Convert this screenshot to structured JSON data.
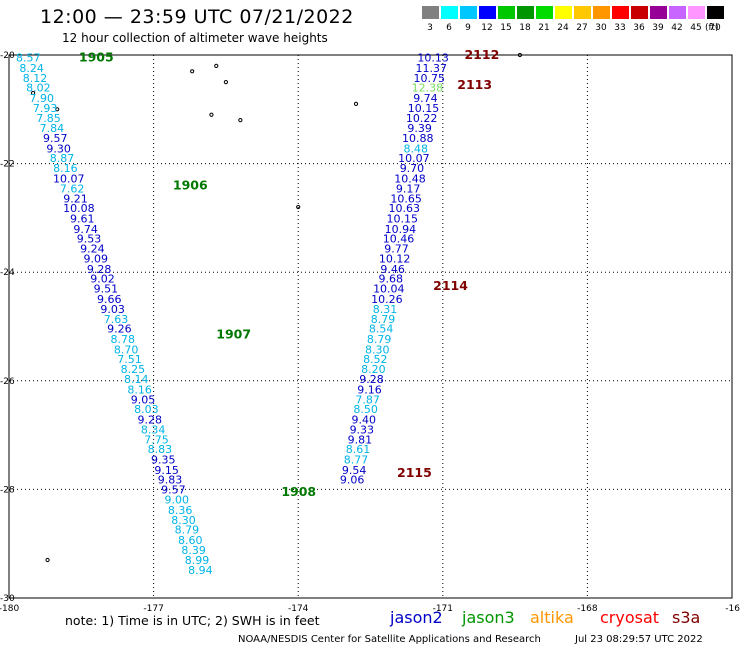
{
  "header": {
    "title": "12:00 — 23:59 UTC 07/21/2022",
    "subtitle": "12 hour collection of altimeter wave heights"
  },
  "legend": {
    "unit": "(ft)",
    "labels": [
      "3",
      "6",
      "9",
      "12",
      "15",
      "18",
      "21",
      "24",
      "27",
      "30",
      "33",
      "36",
      "39",
      "42",
      "45",
      "70"
    ],
    "colors": [
      "#808080",
      "#00ffff",
      "#00c8ff",
      "#0000ff",
      "#00c800",
      "#009600",
      "#00dc00",
      "#ffff00",
      "#ffc800",
      "#ff9600",
      "#ff0000",
      "#c80000",
      "#960096",
      "#c864ff",
      "#ff96ff",
      "#000000"
    ]
  },
  "map": {
    "lat_labels": [
      "-20",
      "-22",
      "-24",
      "-26",
      "-28",
      "-30"
    ],
    "lon_labels": [
      "-180",
      "-177",
      "-174",
      "-171",
      "-168",
      "-16"
    ],
    "tracks": [
      {
        "color_key": "jason3",
        "time_labels": [
          {
            "text": "1905",
            "lat": -20.05,
            "lon": -178.55
          },
          {
            "text": "1906",
            "lat": -22.4,
            "lon": -176.6
          },
          {
            "text": "1907",
            "lat": -25.15,
            "lon": -175.7
          },
          {
            "text": "1908",
            "lat": -28.05,
            "lon": -174.35
          }
        ],
        "points": [
          {
            "lat": -20.05,
            "lon": -179.6,
            "v": "8.57",
            "c": "#00b4e6"
          },
          {
            "lat": -20.24,
            "lon": -179.53,
            "v": "8.24",
            "c": "#00b4e6"
          },
          {
            "lat": -20.42,
            "lon": -179.46,
            "v": "8.12",
            "c": "#00b4e6"
          },
          {
            "lat": -20.6,
            "lon": -179.39,
            "v": "8.02",
            "c": "#00b4e6"
          },
          {
            "lat": -20.79,
            "lon": -179.32,
            "v": "7.90",
            "c": "#00b4e6"
          },
          {
            "lat": -20.98,
            "lon": -179.25,
            "v": "7.93",
            "c": "#00b4e6"
          },
          {
            "lat": -21.16,
            "lon": -179.18,
            "v": "7.85",
            "c": "#00b4e6"
          },
          {
            "lat": -21.34,
            "lon": -179.11,
            "v": "7.84",
            "c": "#00b4e6"
          },
          {
            "lat": -21.53,
            "lon": -179.04,
            "v": "9.57",
            "c": "#0000c8"
          },
          {
            "lat": -21.72,
            "lon": -178.97,
            "v": "9.30",
            "c": "#0000c8"
          },
          {
            "lat": -21.9,
            "lon": -178.9,
            "v": "8.87",
            "c": "#00b4e6"
          },
          {
            "lat": -22.08,
            "lon": -178.83,
            "v": "8.16",
            "c": "#00b4e6"
          },
          {
            "lat": -22.27,
            "lon": -178.76,
            "v": "10.07",
            "c": "#0000c8"
          },
          {
            "lat": -22.46,
            "lon": -178.69,
            "v": "7.62",
            "c": "#00b4e6"
          },
          {
            "lat": -22.64,
            "lon": -178.62,
            "v": "9.21",
            "c": "#0000c8"
          },
          {
            "lat": -22.82,
            "lon": -178.55,
            "v": "10.08",
            "c": "#0000c8"
          },
          {
            "lat": -23.01,
            "lon": -178.48,
            "v": "9.61",
            "c": "#0000c8"
          },
          {
            "lat": -23.2,
            "lon": -178.41,
            "v": "9.74",
            "c": "#0000c8"
          },
          {
            "lat": -23.38,
            "lon": -178.34,
            "v": "9.53",
            "c": "#0000c8"
          },
          {
            "lat": -23.56,
            "lon": -178.27,
            "v": "9.24",
            "c": "#0000c8"
          },
          {
            "lat": -23.75,
            "lon": -178.2,
            "v": "9.09",
            "c": "#0000c8"
          },
          {
            "lat": -23.94,
            "lon": -178.13,
            "v": "9.28",
            "c": "#0000c8"
          },
          {
            "lat": -24.12,
            "lon": -178.06,
            "v": "9.02",
            "c": "#0000c8"
          },
          {
            "lat": -24.3,
            "lon": -177.99,
            "v": "9.51",
            "c": "#0000c8"
          },
          {
            "lat": -24.49,
            "lon": -177.92,
            "v": "9.66",
            "c": "#0000c8"
          },
          {
            "lat": -24.68,
            "lon": -177.85,
            "v": "9.03",
            "c": "#0000c8"
          },
          {
            "lat": -24.86,
            "lon": -177.78,
            "v": "7.63",
            "c": "#00b4e6"
          },
          {
            "lat": -25.04,
            "lon": -177.71,
            "v": "9.26",
            "c": "#0000c8"
          },
          {
            "lat": -25.23,
            "lon": -177.64,
            "v": "8.78",
            "c": "#00b4e6"
          },
          {
            "lat": -25.42,
            "lon": -177.57,
            "v": "8.70",
            "c": "#00b4e6"
          },
          {
            "lat": -25.6,
            "lon": -177.5,
            "v": "7.51",
            "c": "#00b4e6"
          },
          {
            "lat": -25.78,
            "lon": -177.43,
            "v": "8.25",
            "c": "#00b4e6"
          },
          {
            "lat": -25.97,
            "lon": -177.36,
            "v": "8.14",
            "c": "#00b4e6"
          },
          {
            "lat": -26.16,
            "lon": -177.29,
            "v": "8.16",
            "c": "#00b4e6"
          },
          {
            "lat": -26.34,
            "lon": -177.22,
            "v": "9.05",
            "c": "#0000c8"
          },
          {
            "lat": -26.52,
            "lon": -177.15,
            "v": "8.03",
            "c": "#00b4e6"
          },
          {
            "lat": -26.71,
            "lon": -177.08,
            "v": "9.28",
            "c": "#0000c8"
          },
          {
            "lat": -26.9,
            "lon": -177.01,
            "v": "8.34",
            "c": "#00b4e6"
          },
          {
            "lat": -27.08,
            "lon": -176.94,
            "v": "7.75",
            "c": "#00b4e6"
          },
          {
            "lat": -27.26,
            "lon": -176.87,
            "v": "8.83",
            "c": "#00b4e6"
          },
          {
            "lat": -27.45,
            "lon": -176.8,
            "v": "9.35",
            "c": "#0000c8"
          },
          {
            "lat": -27.64,
            "lon": -176.73,
            "v": "9.15",
            "c": "#0000c8"
          },
          {
            "lat": -27.82,
            "lon": -176.66,
            "v": "9.83",
            "c": "#0000c8"
          },
          {
            "lat": -28.0,
            "lon": -176.59,
            "v": "9.57",
            "c": "#0000c8"
          },
          {
            "lat": -28.19,
            "lon": -176.52,
            "v": "9.00",
            "c": "#00b4e6"
          },
          {
            "lat": -28.38,
            "lon": -176.45,
            "v": "8.36",
            "c": "#00b4e6"
          },
          {
            "lat": -28.56,
            "lon": -176.38,
            "v": "8.30",
            "c": "#00b4e6"
          },
          {
            "lat": -28.74,
            "lon": -176.31,
            "v": "8.79",
            "c": "#00b4e6"
          },
          {
            "lat": -28.93,
            "lon": -176.24,
            "v": "8.60",
            "c": "#00b4e6"
          },
          {
            "lat": -29.12,
            "lon": -176.17,
            "v": "8.39",
            "c": "#00b4e6"
          },
          {
            "lat": -29.3,
            "lon": -176.1,
            "v": "8.99",
            "c": "#00b4e6"
          },
          {
            "lat": -29.48,
            "lon": -176.03,
            "v": "8.94",
            "c": "#00b4e6"
          }
        ]
      },
      {
        "color_key": "jason2",
        "time_labels": [
          {
            "text": "2112",
            "lat": -20.0,
            "lon": -170.55
          },
          {
            "text": "2113",
            "lat": -20.55,
            "lon": -170.7
          },
          {
            "text": "2114",
            "lat": -24.25,
            "lon": -171.2
          },
          {
            "text": "2115",
            "lat": -27.7,
            "lon": -171.95
          }
        ],
        "points": [
          {
            "lat": -20.05,
            "lon": -171.2,
            "v": "10.13",
            "c": "#0000c8"
          },
          {
            "lat": -20.24,
            "lon": -171.24,
            "v": "11.37",
            "c": "#0000c8"
          },
          {
            "lat": -20.42,
            "lon": -171.28,
            "v": "10.75",
            "c": "#0000c8"
          },
          {
            "lat": -20.6,
            "lon": -171.32,
            "v": "12.38",
            "c": "#78dc64"
          },
          {
            "lat": -20.79,
            "lon": -171.36,
            "v": "9.74",
            "c": "#0000c8"
          },
          {
            "lat": -20.98,
            "lon": -171.4,
            "v": "10.15",
            "c": "#0000c8"
          },
          {
            "lat": -21.16,
            "lon": -171.44,
            "v": "10.22",
            "c": "#0000c8"
          },
          {
            "lat": -21.34,
            "lon": -171.48,
            "v": "9.39",
            "c": "#0000c8"
          },
          {
            "lat": -21.53,
            "lon": -171.52,
            "v": "10.88",
            "c": "#0000c8"
          },
          {
            "lat": -21.72,
            "lon": -171.56,
            "v": "8.48",
            "c": "#00b4e6"
          },
          {
            "lat": -21.9,
            "lon": -171.6,
            "v": "10.07",
            "c": "#0000c8"
          },
          {
            "lat": -22.08,
            "lon": -171.64,
            "v": "9.70",
            "c": "#0000c8"
          },
          {
            "lat": -22.27,
            "lon": -171.68,
            "v": "10.48",
            "c": "#0000c8"
          },
          {
            "lat": -22.46,
            "lon": -171.72,
            "v": "9.17",
            "c": "#0000c8"
          },
          {
            "lat": -22.64,
            "lon": -171.76,
            "v": "10.65",
            "c": "#0000c8"
          },
          {
            "lat": -22.82,
            "lon": -171.8,
            "v": "10.63",
            "c": "#0000c8"
          },
          {
            "lat": -23.01,
            "lon": -171.84,
            "v": "10.15",
            "c": "#0000c8"
          },
          {
            "lat": -23.2,
            "lon": -171.88,
            "v": "10.94",
            "c": "#0000c8"
          },
          {
            "lat": -23.38,
            "lon": -171.92,
            "v": "10.46",
            "c": "#0000c8"
          },
          {
            "lat": -23.56,
            "lon": -171.96,
            "v": "9.77",
            "c": "#0000c8"
          },
          {
            "lat": -23.75,
            "lon": -172.0,
            "v": "10.12",
            "c": "#0000c8"
          },
          {
            "lat": -23.94,
            "lon": -172.04,
            "v": "9.46",
            "c": "#0000c8"
          },
          {
            "lat": -24.12,
            "lon": -172.08,
            "v": "9.68",
            "c": "#0000c8"
          },
          {
            "lat": -24.3,
            "lon": -172.12,
            "v": "10.04",
            "c": "#0000c8"
          },
          {
            "lat": -24.49,
            "lon": -172.16,
            "v": "10.26",
            "c": "#0000c8"
          },
          {
            "lat": -24.68,
            "lon": -172.2,
            "v": "8.31",
            "c": "#00b4e6"
          },
          {
            "lat": -24.86,
            "lon": -172.24,
            "v": "8.79",
            "c": "#00b4e6"
          },
          {
            "lat": -25.04,
            "lon": -172.28,
            "v": "8.54",
            "c": "#00b4e6"
          },
          {
            "lat": -25.23,
            "lon": -172.32,
            "v": "8.79",
            "c": "#00b4e6"
          },
          {
            "lat": -25.42,
            "lon": -172.36,
            "v": "8.30",
            "c": "#00b4e6"
          },
          {
            "lat": -25.6,
            "lon": -172.4,
            "v": "8.52",
            "c": "#00b4e6"
          },
          {
            "lat": -25.78,
            "lon": -172.44,
            "v": "8.20",
            "c": "#00b4e6"
          },
          {
            "lat": -25.97,
            "lon": -172.48,
            "v": "9.28",
            "c": "#0000c8"
          },
          {
            "lat": -26.16,
            "lon": -172.52,
            "v": "9.16",
            "c": "#0000c8"
          },
          {
            "lat": -26.34,
            "lon": -172.56,
            "v": "7.87",
            "c": "#00b4e6"
          },
          {
            "lat": -26.52,
            "lon": -172.6,
            "v": "8.50",
            "c": "#00b4e6"
          },
          {
            "lat": -26.71,
            "lon": -172.64,
            "v": "9.40",
            "c": "#0000c8"
          },
          {
            "lat": -26.9,
            "lon": -172.68,
            "v": "9.33",
            "c": "#0000c8"
          },
          {
            "lat": -27.08,
            "lon": -172.72,
            "v": "9.81",
            "c": "#0000c8"
          },
          {
            "lat": -27.26,
            "lon": -172.76,
            "v": "8.61",
            "c": "#00b4e6"
          },
          {
            "lat": -27.45,
            "lon": -172.8,
            "v": "8.77",
            "c": "#00b4e6"
          },
          {
            "lat": -27.64,
            "lon": -172.84,
            "v": "9.54",
            "c": "#0000c8"
          },
          {
            "lat": -27.82,
            "lon": -172.88,
            "v": "9.06",
            "c": "#0000c8"
          }
        ]
      }
    ],
    "islands": [
      {
        "lat": -20.3,
        "lon": -176.2
      },
      {
        "lat": -20.5,
        "lon": -175.5
      },
      {
        "lat": -20.2,
        "lon": -175.7
      },
      {
        "lat": -21.1,
        "lon": -175.8
      },
      {
        "lat": -21.2,
        "lon": -175.2
      },
      {
        "lat": -20.7,
        "lon": -179.5
      },
      {
        "lat": -21.0,
        "lon": -179.0
      },
      {
        "lat": -20.9,
        "lon": -172.8
      },
      {
        "lat": -22.8,
        "lon": -174.0
      },
      {
        "lat": -29.3,
        "lon": -179.2
      },
      {
        "lat": -20.0,
        "lon": -169.4
      }
    ]
  },
  "footer": {
    "note": "note:  1) Time is in UTC;  2) SWH is in feet",
    "satellites": [
      {
        "name": "jason2",
        "color": "#0000c8"
      },
      {
        "name": "jason3",
        "color": "#009600"
      },
      {
        "name": "altika",
        "color": "#ff9600"
      },
      {
        "name": "cryosat",
        "color": "#ff0000"
      },
      {
        "name": "s3a",
        "color": "#800000"
      }
    ],
    "credit": "NOAA/NESDIS Center for Satellite Applications and Research",
    "timestamp": "Jul 23 08:29:57 UTC 2022"
  },
  "colors": {
    "time_label_jason3": "#007800",
    "time_label_jason2": "#800000",
    "grid": "#000000"
  }
}
